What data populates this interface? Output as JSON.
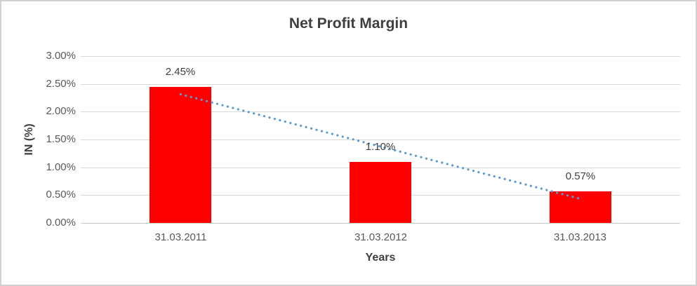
{
  "window": {
    "background": "#ffffff",
    "border_color": "#d2d2d2"
  },
  "chart_data": {
    "type": "bar",
    "title": "Net Profit Margin",
    "categories": [
      "31.03.2011",
      "31.03.2012",
      "31.03.2013"
    ],
    "values": [
      2.45,
      1.1,
      0.57
    ],
    "data_labels": [
      "2.45%",
      "1.10%",
      "0.57%"
    ],
    "xlabel": "Years",
    "ylabel": "IN (%)",
    "ylim": [
      0,
      3
    ],
    "ytick_step": 0.5,
    "yticks": [
      {
        "value": 0.0,
        "label": "0.00%"
      },
      {
        "value": 0.5,
        "label": "0.50%"
      },
      {
        "value": 1.0,
        "label": "1.00%"
      },
      {
        "value": 1.5,
        "label": "1.50%"
      },
      {
        "value": 2.0,
        "label": "2.00%"
      },
      {
        "value": 2.5,
        "label": "2.50%"
      },
      {
        "value": 3.0,
        "label": "3.00%"
      }
    ],
    "grid": true,
    "legend": "none",
    "bar_color": "#ff0000",
    "trendline": {
      "type": "linear",
      "style": "dotted",
      "color": "#5b9bd5"
    },
    "colors": {
      "gridline": "#d9d9d9",
      "axis_line": "#c9c9c9",
      "tick_text": "#595959",
      "title_text": "#3f3f3f",
      "data_label_text": "#404040"
    }
  }
}
